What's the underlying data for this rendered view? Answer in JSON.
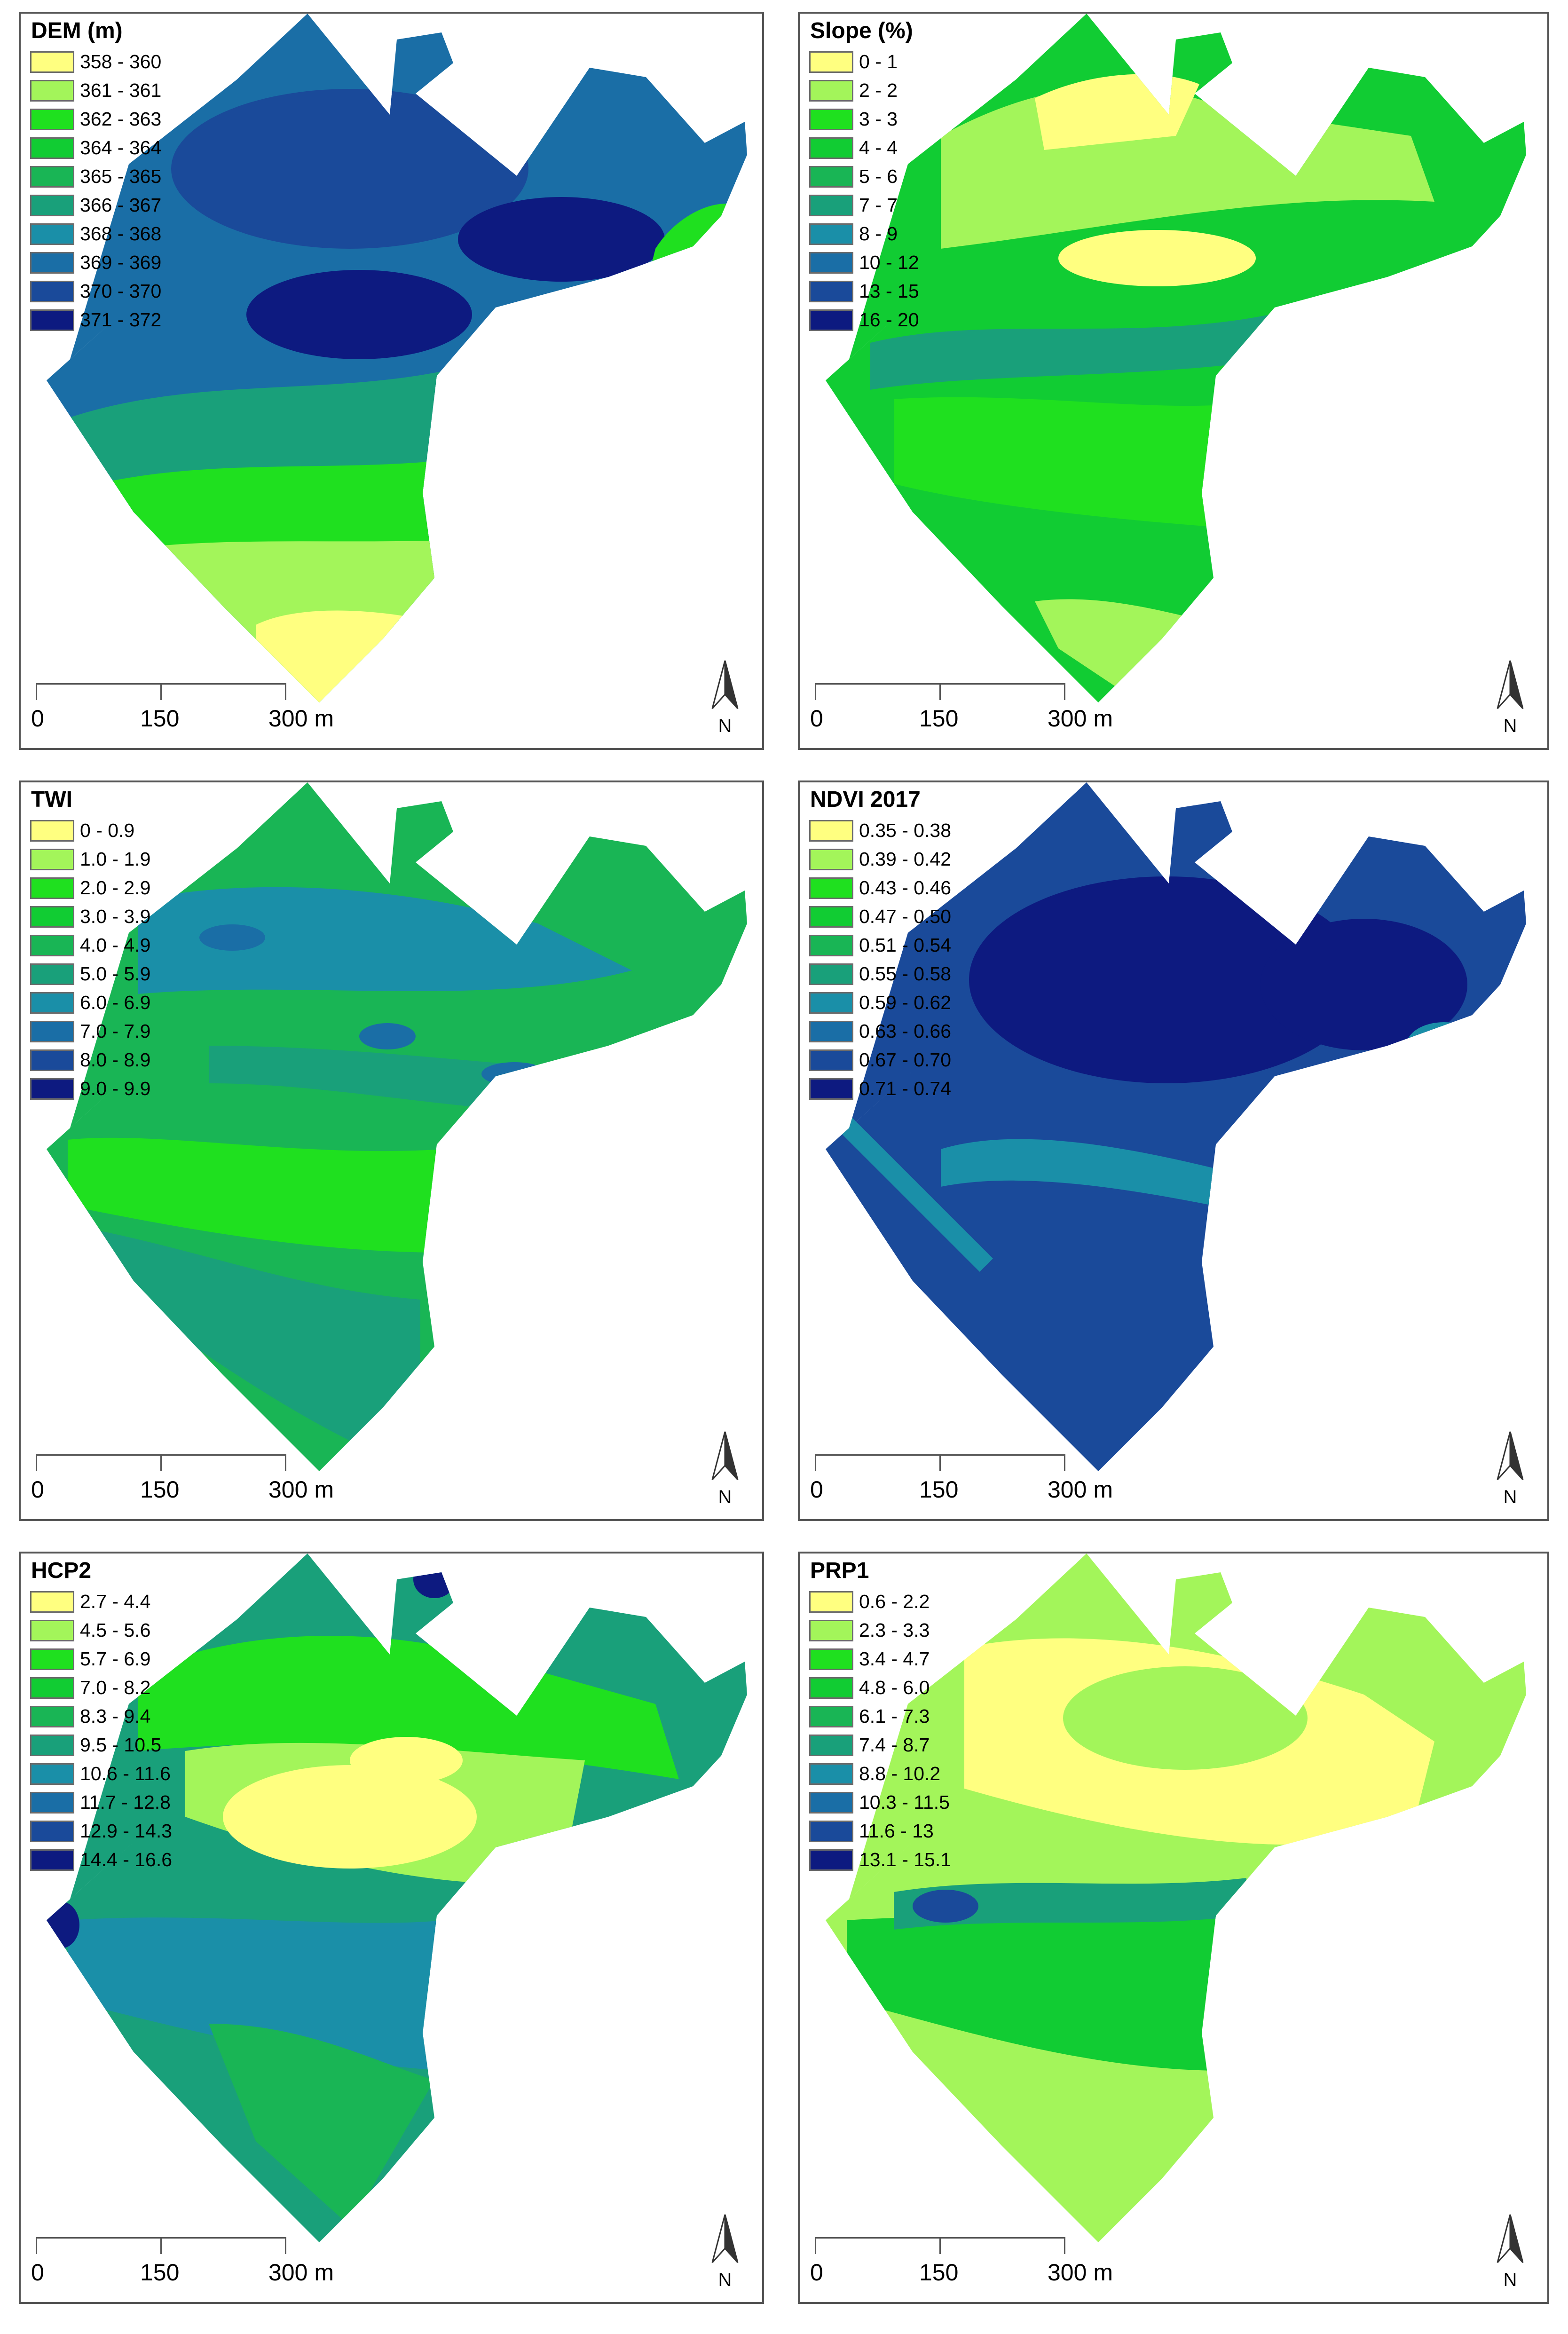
{
  "scale_bar": {
    "labels": [
      "0",
      "150",
      "300 m"
    ]
  },
  "north_arrow": {
    "label": "N"
  },
  "panels": [
    {
      "title": "DEM (m)",
      "legend": [
        "358 - 360",
        "361 - 361",
        "362 - 363",
        "364 - 364",
        "365 - 365",
        "366 - 367",
        "368 - 368",
        "369 - 369",
        "370 - 370",
        "371 - 372"
      ]
    },
    {
      "title": "Slope (%)",
      "legend": [
        "0 - 1",
        "2 - 2",
        "3 - 3",
        "4 - 4",
        "5 - 6",
        "7 - 7",
        "8 - 9",
        "10 - 12",
        "13 - 15",
        "16 - 20"
      ]
    },
    {
      "title": "TWI",
      "legend": [
        "0 - 0.9",
        "1.0 - 1.9",
        "2.0 - 2.9",
        "3.0 - 3.9",
        "4.0 - 4.9",
        "5.0 - 5.9",
        "6.0 - 6.9",
        "7.0 - 7.9",
        "8.0 - 8.9",
        "9.0 - 9.9"
      ]
    },
    {
      "title": "NDVI 2017",
      "legend": [
        "0.35 - 0.38",
        "0.39 - 0.42",
        "0.43 - 0.46",
        "0.47 - 0.50",
        "0.51 - 0.54",
        "0.55 - 0.58",
        "0.59 - 0.62",
        "0.63 - 0.66",
        "0.67 - 0.70",
        "0.71 - 0.74"
      ]
    },
    {
      "title": "HCP2",
      "legend": [
        "2.7 - 4.4",
        "4.5 - 5.6",
        "5.7 - 6.9",
        "7.0 - 8.2",
        "8.3 - 9.4",
        "9.5 - 10.5",
        "10.6 - 11.6",
        "11.7 - 12.8",
        "12.9 - 14.3",
        "14.4 - 16.6"
      ]
    },
    {
      "title": "PRP1",
      "legend": [
        "0.6 - 2.2",
        "2.3 - 3.3",
        "3.4 - 4.7",
        "4.8 - 6.0",
        "6.1 - 7.3",
        "7.4 - 8.7",
        "8.8 - 10.2",
        "10.3 - 11.5",
        "11.6 - 13",
        "13.1 - 15.1"
      ]
    }
  ],
  "legend_colors": [
    "#ffff80",
    "#a3f55a",
    "#1fe01f",
    "#11cc33",
    "#19b555",
    "#19a07a",
    "#1a8fa8",
    "#1a6ea6",
    "#1a4a9a",
    "#0d1a80"
  ]
}
